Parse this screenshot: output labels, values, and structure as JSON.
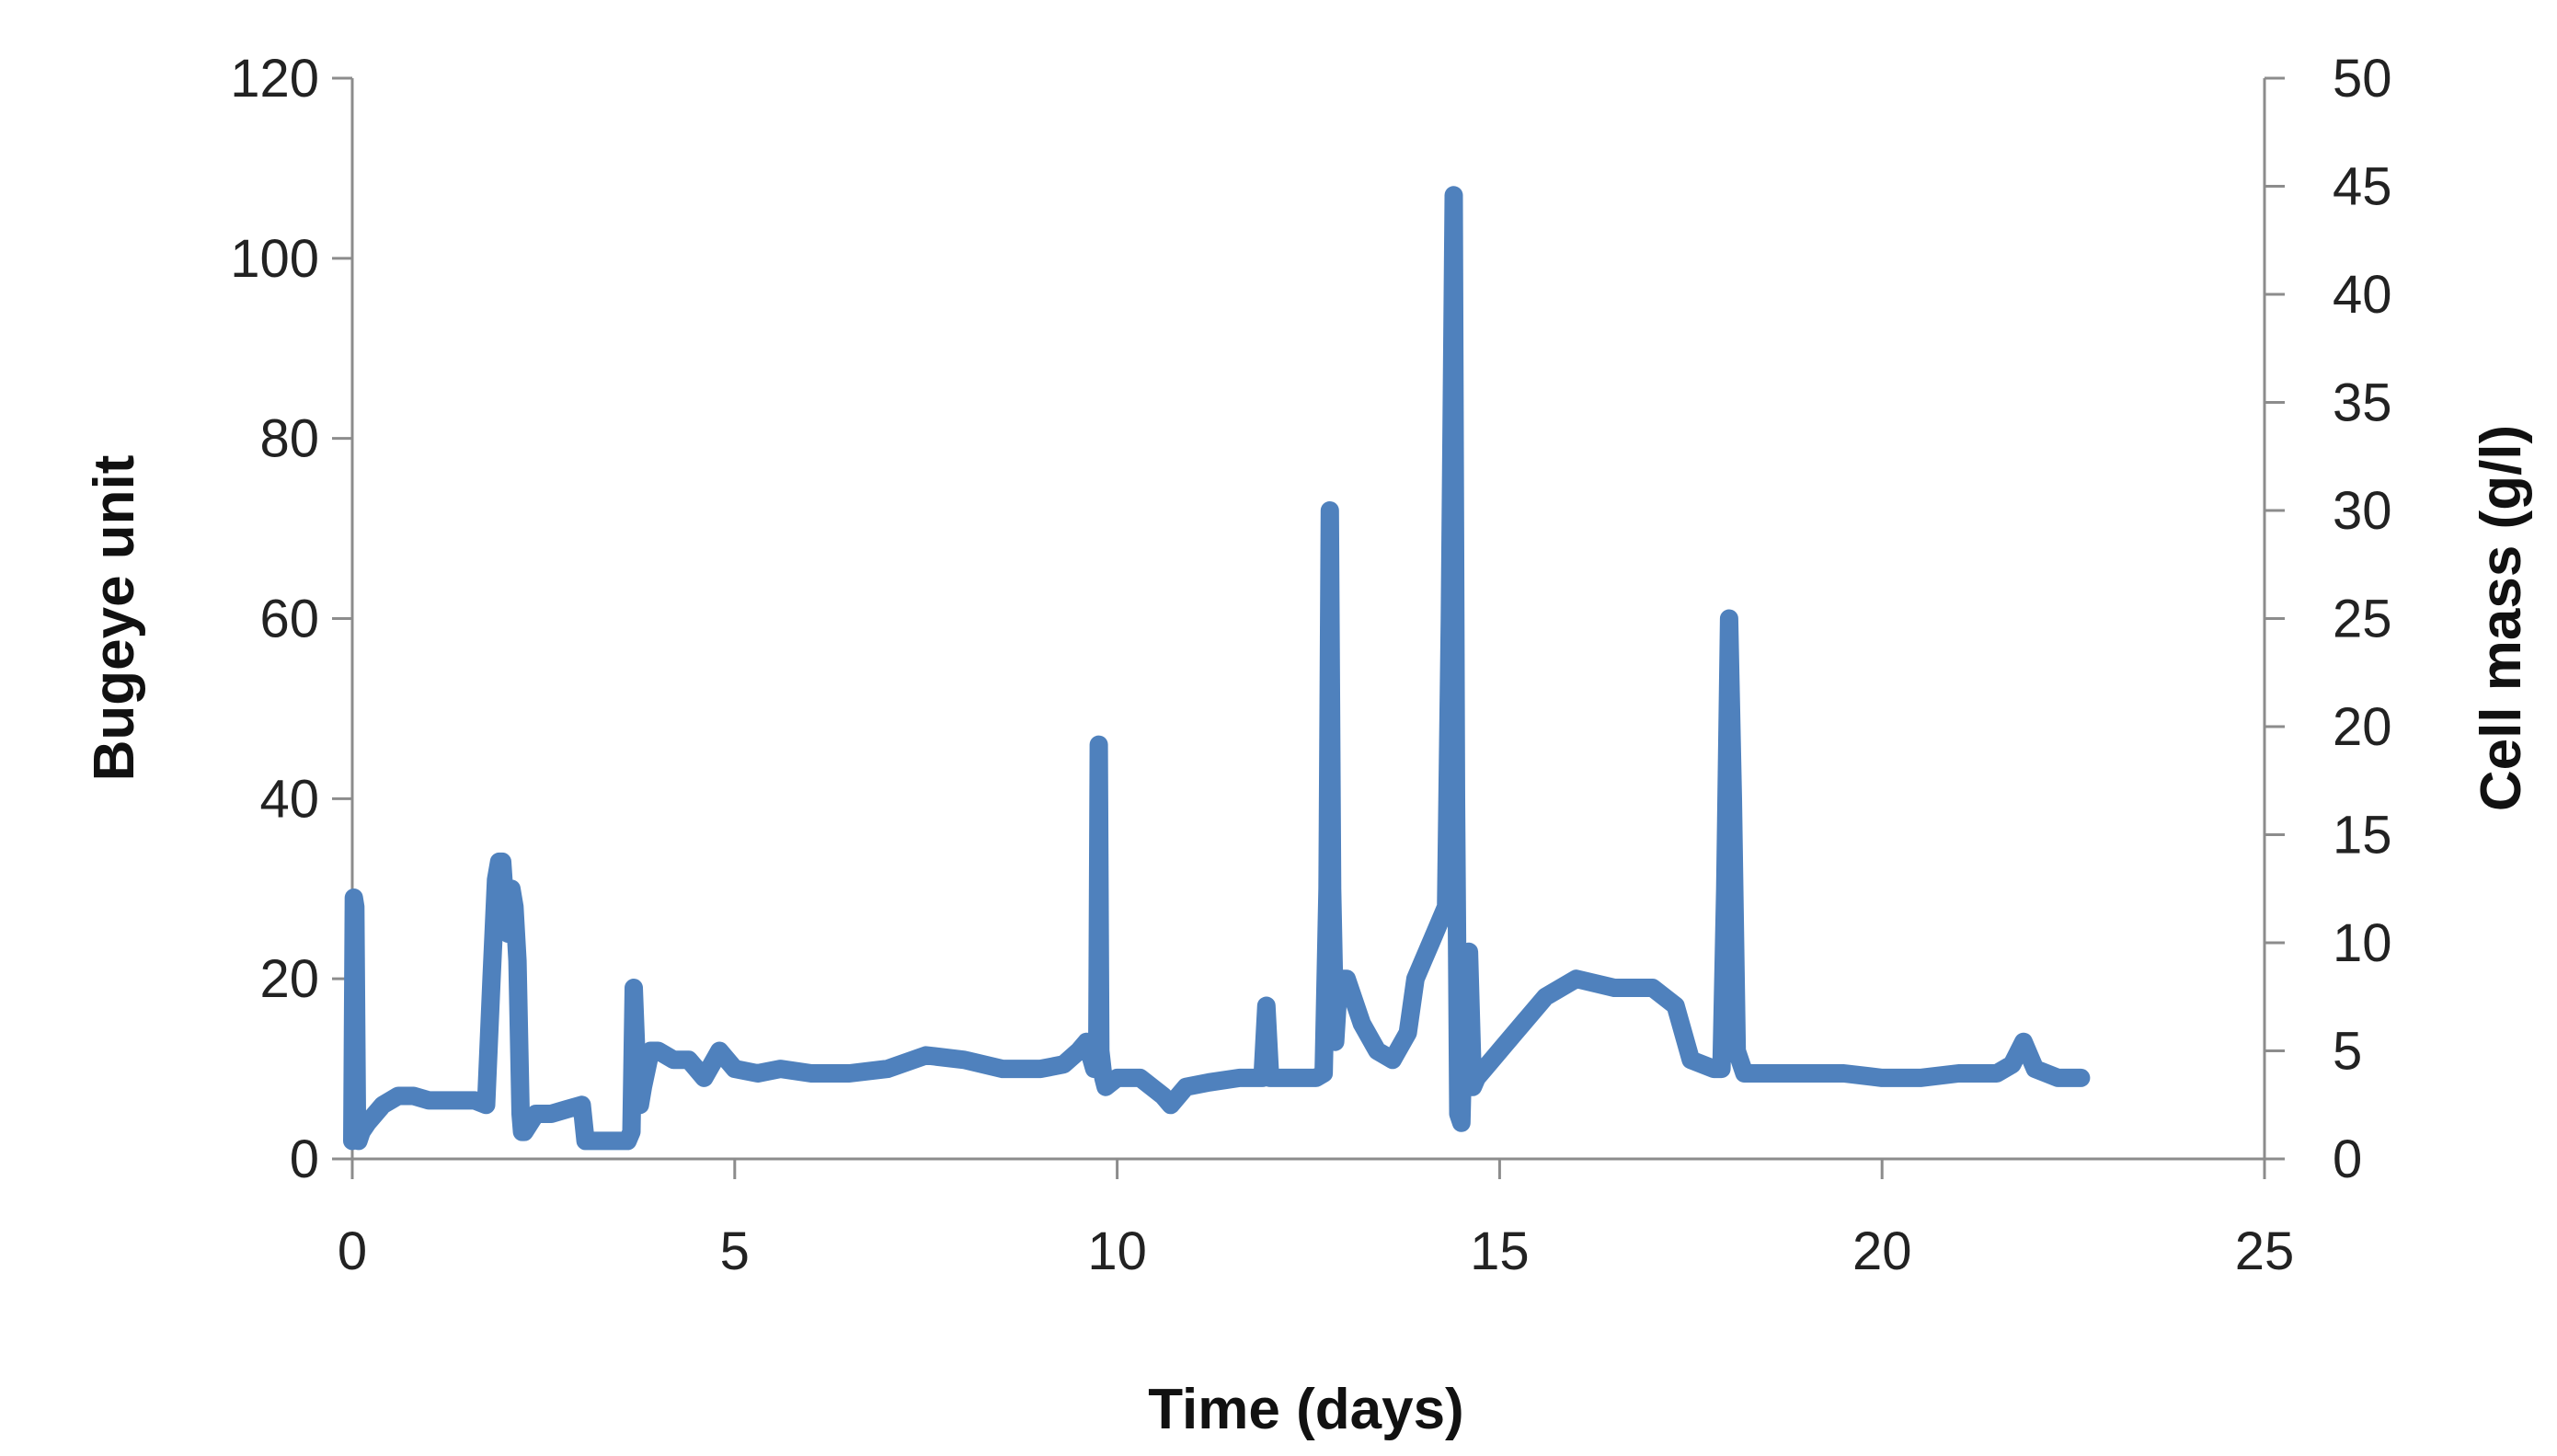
{
  "chart_data": {
    "type": "line",
    "title": "",
    "xlabel": "Time (days)",
    "ylabel": "Bugeye unit",
    "y2label": "Cell mass (g/l)",
    "xlim": [
      0,
      25
    ],
    "ylim": [
      0,
      120
    ],
    "y2lim": [
      0,
      50
    ],
    "x_ticks": [
      "0",
      "5",
      "10",
      "15",
      "20",
      "25"
    ],
    "y_ticks": [
      "0",
      "20",
      "40",
      "60",
      "80",
      "100",
      "120"
    ],
    "y2_ticks": [
      "0",
      "5",
      "10",
      "15",
      "20",
      "25",
      "30",
      "35",
      "40",
      "45",
      "50"
    ],
    "grid": false,
    "legend": "none",
    "color": "#4F81BD",
    "series": [
      {
        "axis": "left",
        "x": [
          0.0,
          0.02,
          0.04,
          0.06,
          0.08,
          0.12,
          0.2,
          0.4,
          0.6,
          0.8,
          1.0,
          1.2,
          1.4,
          1.6,
          1.75,
          1.82,
          1.88,
          1.92,
          1.96,
          2.0,
          2.04,
          2.08,
          2.12,
          2.16,
          2.2,
          2.22,
          2.25,
          2.4,
          2.6,
          2.8,
          3.0,
          3.05,
          3.2,
          3.4,
          3.6,
          3.65,
          3.68,
          3.72,
          3.76,
          3.8,
          3.9,
          4.0,
          4.2,
          4.4,
          4.6,
          4.8,
          5.0,
          5.3,
          5.6,
          6.0,
          6.5,
          7.0,
          7.5,
          8.0,
          8.5,
          9.0,
          9.3,
          9.5,
          9.6,
          9.7,
          9.74,
          9.76,
          9.78,
          9.82,
          9.85,
          10.0,
          10.3,
          10.6,
          10.7,
          10.9,
          11.2,
          11.6,
          11.9,
          11.95,
          12.0,
          12.03,
          12.06,
          12.3,
          12.6,
          12.7,
          12.75,
          12.78,
          12.81,
          12.85,
          12.9,
          13.0,
          13.2,
          13.4,
          13.6,
          13.8,
          13.9,
          14.0,
          14.1,
          14.2,
          14.3,
          14.35,
          14.4,
          14.43,
          14.46,
          14.5,
          14.55,
          14.6,
          14.65,
          14.7,
          14.8,
          15.0,
          15.3,
          15.6,
          16.0,
          16.5,
          17.0,
          17.3,
          17.5,
          17.8,
          17.9,
          17.95,
          18.0,
          18.05,
          18.1,
          18.2,
          18.3,
          18.6,
          19.0,
          19.5,
          20.0,
          20.5,
          21.0,
          21.5,
          21.7,
          21.85,
          22.0,
          22.3,
          22.6
        ],
        "y": [
          2,
          29,
          28,
          5,
          2,
          3,
          4,
          6,
          7,
          7,
          6.5,
          6.5,
          6.5,
          6.5,
          6,
          20,
          31,
          33,
          33,
          28,
          25,
          30,
          28,
          22,
          5,
          3,
          3,
          5,
          5,
          5.5,
          6,
          2,
          2,
          2,
          2,
          3,
          19,
          10,
          6,
          8,
          12,
          12,
          11,
          11,
          9,
          12,
          10,
          9.5,
          10,
          9.5,
          9.5,
          10,
          11.5,
          11,
          10,
          10,
          10.5,
          12,
          13,
          10,
          12,
          46,
          12,
          9,
          8,
          9,
          9,
          7,
          6,
          8,
          8.5,
          9,
          9,
          17,
          9,
          9,
          9,
          9,
          9,
          9.5,
          30,
          72,
          30,
          13,
          20,
          20,
          15,
          12,
          11,
          14,
          20,
          22,
          24,
          26,
          28,
          60,
          107,
          40,
          5,
          4,
          22,
          23,
          8,
          9,
          10,
          12,
          15,
          18,
          20,
          19,
          19,
          17,
          11,
          10,
          10,
          30,
          60,
          40,
          12,
          9.5,
          9.5,
          9.5,
          9.5,
          9.5,
          9,
          9,
          9.5,
          9.5,
          10.5,
          13,
          10,
          9,
          9
        ]
      }
    ]
  }
}
